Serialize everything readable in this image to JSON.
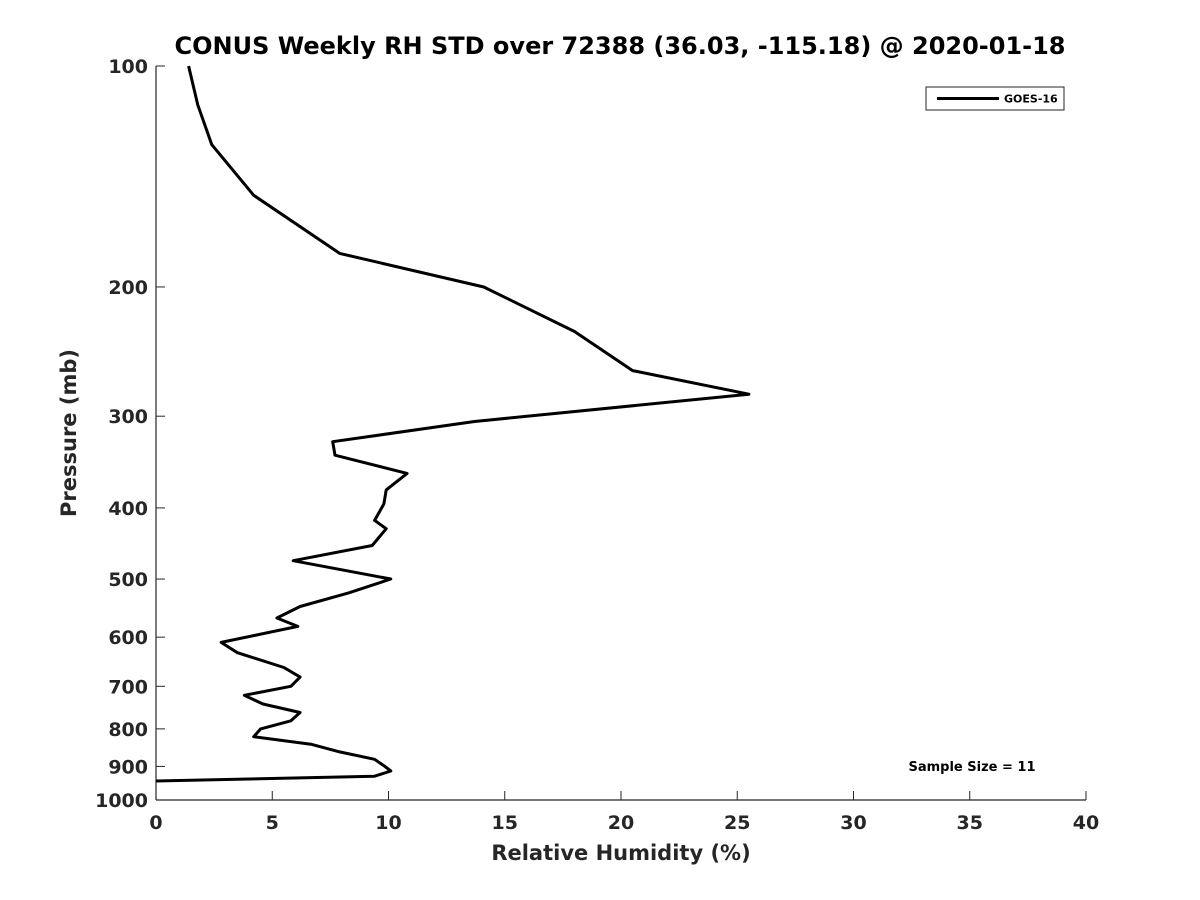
{
  "chart_data": {
    "type": "line",
    "title": "CONUS Weekly RH STD over 72388 (36.03, -115.18) @ 2020-01-18",
    "xlabel": "Relative Humidity (%)",
    "ylabel": "Pressure (mb)",
    "xlim": [
      0,
      40
    ],
    "ylim": [
      1000,
      100
    ],
    "yscale": "log",
    "y_reversed": true,
    "xticks": [
      0,
      5,
      10,
      15,
      20,
      25,
      30,
      35,
      40
    ],
    "yticks": [
      100,
      200,
      300,
      400,
      500,
      600,
      700,
      800,
      900,
      1000
    ],
    "grid": false,
    "legend_position": "top-right",
    "series": [
      {
        "name": "GOES-16",
        "color": "#000000",
        "x": [
          1.4,
          1.8,
          2.4,
          4.2,
          7.9,
          14.1,
          18.0,
          20.5,
          25.5,
          13.7,
          7.6,
          7.7,
          10.8,
          9.9,
          9.8,
          9.4,
          9.9,
          9.3,
          5.9,
          10.1,
          8.3,
          6.2,
          5.2,
          6.1,
          2.8,
          3.5,
          5.5,
          6.2,
          5.8,
          3.8,
          4.6,
          6.2,
          5.8,
          4.5,
          4.2,
          6.7,
          7.9,
          9.4,
          9.8,
          10.1,
          9.4,
          0
        ],
        "y": [
          100,
          113,
          128,
          150,
          180,
          200,
          230,
          260,
          280,
          305,
          325,
          339,
          359,
          378,
          395,
          416,
          427,
          450,
          472,
          500,
          522,
          545,
          565,
          580,
          610,
          630,
          660,
          680,
          700,
          720,
          740,
          760,
          780,
          800,
          820,
          840,
          860,
          880,
          898,
          913,
          928,
          942
        ]
      }
    ],
    "annotations": [
      "Sample Size = 11"
    ]
  }
}
